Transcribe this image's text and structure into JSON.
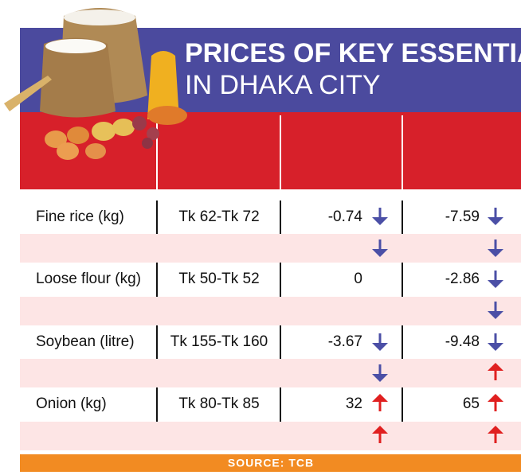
{
  "header": {
    "title": "PRICES OF KEY ESSENTIALS",
    "subtitle": "IN DHAKA CITY"
  },
  "table": {
    "rows": [
      [
        "Fine rice (kg)",
        "Tk 62-Tk 72",
        "-0.74",
        "-7.59"
      ],
      [
        "Loose flour (kg)",
        "Tk 50-Tk 52",
        "0",
        "-2.86"
      ],
      [
        "Soybean (litre)",
        "Tk 155-Tk 160",
        "-3.67",
        "-9.48"
      ],
      [
        "Onion (kg)",
        "Tk 80-Tk 85",
        "32",
        "65"
      ]
    ]
  },
  "footer": {
    "source": "SOURCE: TCB"
  }
}
